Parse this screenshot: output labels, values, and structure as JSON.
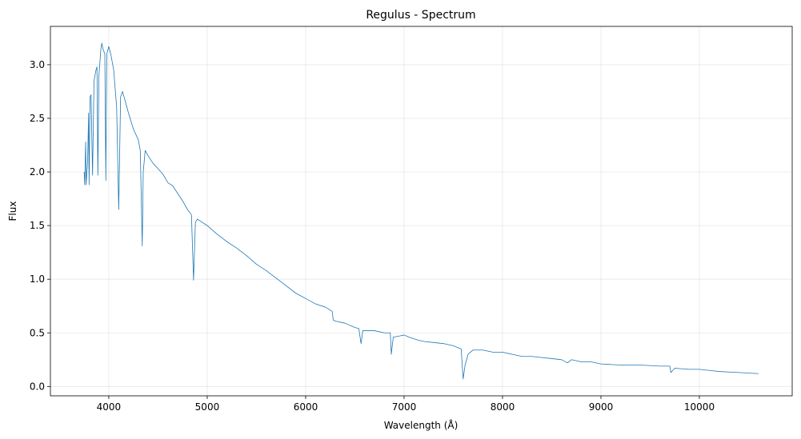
{
  "chart_data": {
    "type": "line",
    "title": "Regulus - Spectrum",
    "x_label": "Wavelength (Å)",
    "y_label": "Flux",
    "grid": true,
    "xlim": [
      3407,
      10943
    ],
    "ylim": [
      -0.087,
      3.357
    ],
    "xticks": [
      4000,
      5000,
      6000,
      7000,
      8000,
      9000,
      10000
    ],
    "yticks": [
      {
        "value": 0,
        "label": "0.0"
      },
      0.5,
      {
        "value": 1,
        "label": "1.0"
      },
      1.5,
      {
        "value": 2,
        "label": "2.0"
      },
      2.5,
      {
        "value": 3,
        "label": "3.0"
      }
    ],
    "x": [
      3750,
      3755,
      3765,
      3770,
      3785,
      3795,
      3800,
      3810,
      3820,
      3835,
      3850,
      3870,
      3880,
      3889,
      3900,
      3920,
      3930,
      3940,
      3960,
      3970,
      3980,
      4000,
      4020,
      4050,
      4080,
      4101,
      4120,
      4140,
      4170,
      4200,
      4250,
      4300,
      4320,
      4340,
      4350,
      4370,
      4400,
      4450,
      4500,
      4550,
      4600,
      4650,
      4700,
      4750,
      4800,
      4840,
      4861,
      4880,
      4900,
      4950,
      5000,
      5100,
      5200,
      5300,
      5400,
      5500,
      5600,
      5700,
      5800,
      5900,
      6000,
      6100,
      6200,
      6270,
      6280,
      6300,
      6400,
      6500,
      6540,
      6563,
      6580,
      6650,
      6700,
      6800,
      6860,
      6870,
      6890,
      6950,
      7000,
      7050,
      7150,
      7200,
      7300,
      7400,
      7500,
      7580,
      7600,
      7620,
      7650,
      7700,
      7800,
      7900,
      8000,
      8100,
      8200,
      8300,
      8400,
      8500,
      8600,
      8660,
      8700,
      8800,
      8900,
      9000,
      9200,
      9400,
      9600,
      9700,
      9710,
      9750,
      9900,
      10000,
      10200,
      10400,
      10600
    ],
    "series": [
      {
        "color": "#1f77b4",
        "values": [
          2.0,
          1.88,
          2.28,
          1.88,
          2.1,
          2.55,
          1.88,
          2.7,
          2.72,
          1.97,
          2.85,
          2.95,
          2.98,
          1.97,
          2.9,
          3.15,
          3.2,
          3.15,
          3.1,
          1.92,
          3.1,
          3.17,
          3.1,
          2.95,
          2.6,
          1.65,
          2.7,
          2.75,
          2.65,
          2.55,
          2.4,
          2.3,
          2.2,
          1.31,
          2.0,
          2.2,
          2.15,
          2.08,
          2.03,
          1.98,
          1.9,
          1.87,
          1.8,
          1.73,
          1.65,
          1.6,
          0.99,
          1.53,
          1.56,
          1.53,
          1.5,
          1.42,
          1.35,
          1.29,
          1.22,
          1.14,
          1.08,
          1.01,
          0.94,
          0.87,
          0.82,
          0.77,
          0.74,
          0.7,
          0.62,
          0.61,
          0.59,
          0.55,
          0.54,
          0.4,
          0.52,
          0.52,
          0.52,
          0.5,
          0.5,
          0.3,
          0.46,
          0.47,
          0.48,
          0.46,
          0.43,
          0.42,
          0.41,
          0.4,
          0.38,
          0.35,
          0.07,
          0.2,
          0.3,
          0.34,
          0.34,
          0.32,
          0.32,
          0.3,
          0.28,
          0.28,
          0.27,
          0.26,
          0.25,
          0.22,
          0.25,
          0.23,
          0.23,
          0.21,
          0.2,
          0.2,
          0.19,
          0.19,
          0.13,
          0.17,
          0.16,
          0.16,
          0.14,
          0.13,
          0.12
        ]
      }
    ]
  }
}
